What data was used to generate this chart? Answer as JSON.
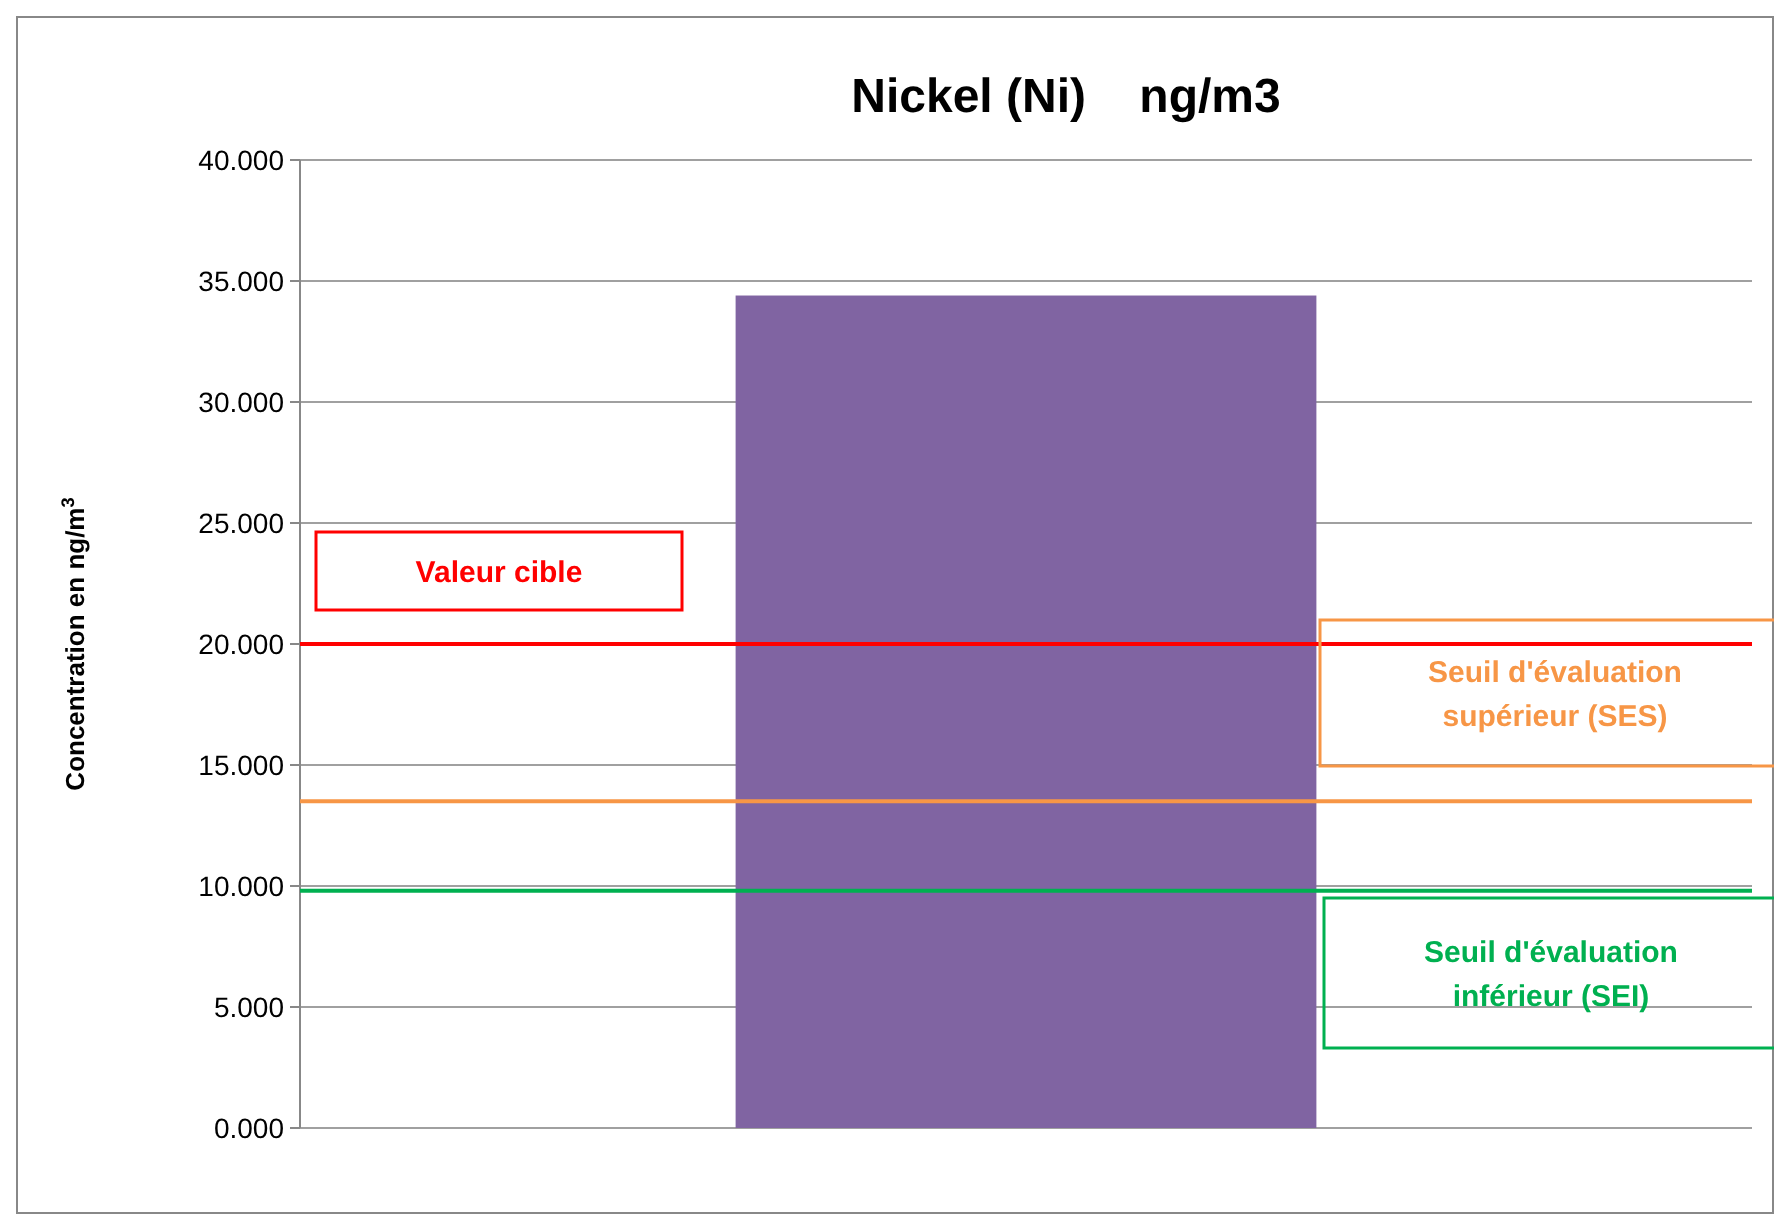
{
  "chart_data": {
    "type": "bar",
    "title": "Nickel (Ni)    ng/m3",
    "ylabel": "Concentration en ng/m$^{3}$",
    "categories": [
      null
    ],
    "values": [
      34.4
    ],
    "color": "#8064a2",
    "ylim": [
      0,
      40
    ],
    "yticks": [
      {
        "value": 0,
        "label": "0.000"
      },
      {
        "value": 5,
        "label": "5.000"
      },
      {
        "value": 10,
        "label": "10.000"
      },
      {
        "value": 15,
        "label": "15.000"
      },
      {
        "value": 20,
        "label": "20.000"
      },
      {
        "value": 25,
        "label": "25.000"
      },
      {
        "value": 30,
        "label": "30.000"
      },
      {
        "value": 35,
        "label": "35.000"
      },
      {
        "value": 40,
        "label": "40.000"
      }
    ],
    "grid": "y",
    "ref_lines": [
      {
        "axis": "y",
        "value": 20,
        "label": "Valeur cible",
        "color": "#ff0000"
      },
      {
        "axis": "y",
        "value": 13.5,
        "label": "Seuil d'évaluation supérieur (SES)",
        "color": "#f79646"
      },
      {
        "axis": "y",
        "value": 9.8,
        "label": "Seuil d'évaluation inférieur (SEI)",
        "color": "#00b050"
      }
    ]
  }
}
